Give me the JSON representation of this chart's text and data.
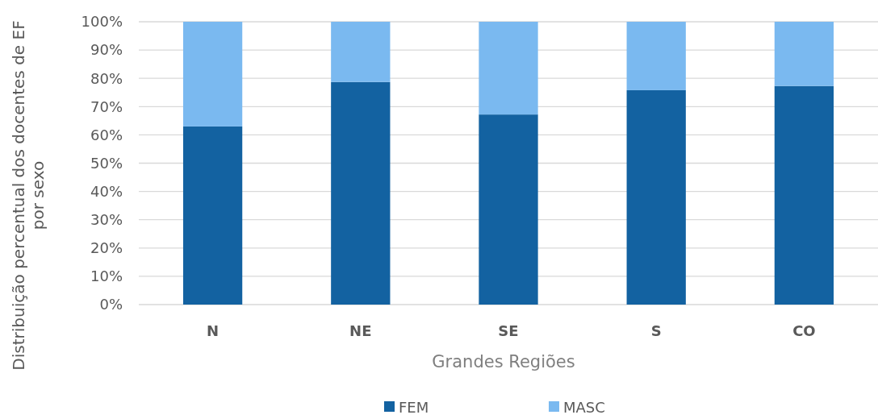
{
  "chart_data": {
    "type": "bar",
    "stacked": true,
    "xlabel": "Grandes Regiões",
    "ylabel": "Distribuição percentual dos docentes de EF por sexo",
    "categories": [
      "N",
      "NE",
      "SE",
      "S",
      "CO"
    ],
    "series": [
      {
        "name": "FEM",
        "color": "#1362a1",
        "values": [
          63,
          78.7,
          67.2,
          75.8,
          77.3
        ]
      },
      {
        "name": "MASC",
        "color": "#7ab9f0",
        "values": [
          37,
          21.3,
          32.8,
          24.2,
          22.7
        ]
      }
    ],
    "ylim": [
      0,
      100
    ],
    "yticks": [
      {
        "value": 0,
        "label": "0%"
      },
      {
        "value": 10,
        "label": "10%"
      },
      {
        "value": 20,
        "label": "20%"
      },
      {
        "value": 30,
        "label": "30%"
      },
      {
        "value": 40,
        "label": "40%"
      },
      {
        "value": 50,
        "label": "50%"
      },
      {
        "value": 60,
        "label": "60%"
      },
      {
        "value": 70,
        "label": "70%"
      },
      {
        "value": 80,
        "label": "80%"
      },
      {
        "value": 90,
        "label": "90%"
      },
      {
        "value": 100,
        "label": "100%"
      }
    ],
    "grid": "y",
    "legend": "bottom"
  }
}
